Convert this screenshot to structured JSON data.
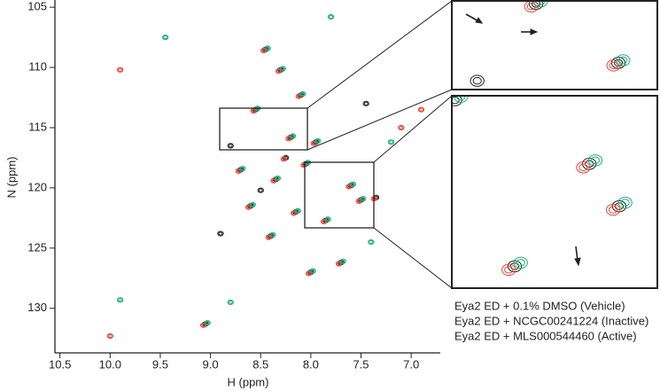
{
  "chart_data": {
    "type": "scatter",
    "xlabel": "H (ppm)",
    "ylabel": "N (ppm)",
    "xlim": [
      10.55,
      6.71
    ],
    "ylim": [
      104.4,
      133.7
    ],
    "xticks": [
      10.5,
      {
        "value": 10,
        "label": "10.0"
      },
      9.5,
      {
        "value": 9,
        "label": "9.0"
      },
      8.5,
      {
        "value": 8,
        "label": "8.0"
      },
      7.5,
      {
        "value": 7,
        "label": "7.0"
      }
    ],
    "yticks": [
      105,
      110,
      115,
      120,
      125,
      130
    ],
    "series": [
      {
        "name": "Eya2 ED + 0.1% DMSO (Vehicle)",
        "color": "#222222",
        "x": [
          8.45,
          8.3,
          8.1,
          8.55,
          8.2,
          7.95,
          8.7,
          8.05,
          8.35,
          7.6,
          7.5,
          8.6,
          8.15,
          7.85,
          8.4,
          9.05,
          8.0,
          7.7,
          8.25,
          8.5,
          7.35,
          8.8,
          7.45,
          8.9
        ],
        "values": [
          108.5,
          110.2,
          112.3,
          113.5,
          115.8,
          116.2,
          118.5,
          118.0,
          119.3,
          119.8,
          121.0,
          121.5,
          122.0,
          122.7,
          124.0,
          131.3,
          127.0,
          126.2,
          117.5,
          120.2,
          120.8,
          116.5,
          113.0,
          123.8
        ]
      },
      {
        "name": "Eya2 ED + NCGC00241224 (Inactive)",
        "color": "#e8463a",
        "x": [
          8.47,
          8.32,
          8.12,
          8.57,
          8.22,
          7.97,
          8.72,
          8.07,
          8.37,
          7.62,
          7.52,
          8.62,
          8.17,
          7.87,
          8.42,
          9.07,
          8.02,
          7.72,
          9.9,
          10.0,
          7.1,
          6.9,
          8.27,
          7.37
        ],
        "values": [
          108.6,
          110.3,
          112.4,
          113.6,
          115.9,
          116.3,
          118.6,
          118.1,
          119.4,
          119.9,
          121.1,
          121.6,
          122.1,
          122.8,
          124.1,
          131.4,
          127.1,
          126.3,
          110.2,
          132.3,
          115.0,
          113.5,
          117.6,
          120.9
        ]
      },
      {
        "name": "Eya2 ED + MLS000544460 (Active)",
        "color": "#1fae7a",
        "x": [
          8.43,
          8.28,
          8.08,
          8.53,
          8.18,
          7.93,
          8.68,
          8.03,
          8.33,
          7.58,
          7.48,
          8.58,
          8.13,
          7.83,
          8.38,
          9.03,
          7.98,
          7.68,
          9.45,
          8.8,
          7.2,
          7.8,
          9.9,
          7.4
        ],
        "values": [
          108.4,
          110.1,
          112.2,
          113.4,
          115.7,
          116.1,
          118.4,
          117.9,
          119.2,
          119.7,
          120.9,
          121.4,
          121.9,
          122.6,
          123.9,
          131.2,
          126.9,
          126.1,
          107.5,
          129.5,
          116.2,
          105.8,
          129.3,
          124.5
        ]
      }
    ]
  }
}
